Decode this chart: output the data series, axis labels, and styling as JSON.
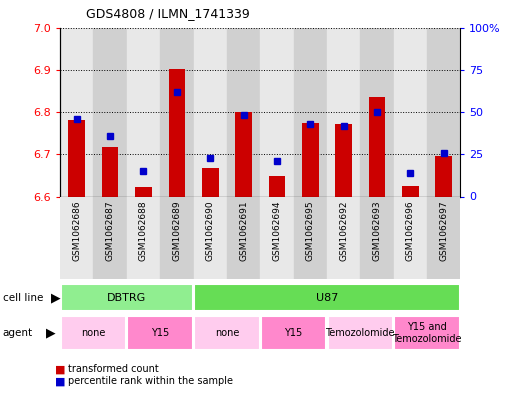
{
  "title": "GDS4808 / ILMN_1741339",
  "samples": [
    "GSM1062686",
    "GSM1062687",
    "GSM1062688",
    "GSM1062689",
    "GSM1062690",
    "GSM1062691",
    "GSM1062694",
    "GSM1062695",
    "GSM1062692",
    "GSM1062693",
    "GSM1062696",
    "GSM1062697"
  ],
  "transformed_count": [
    6.782,
    6.718,
    6.622,
    6.902,
    6.668,
    6.8,
    6.648,
    6.775,
    6.772,
    6.835,
    6.625,
    6.695
  ],
  "percentile_rank": [
    46,
    36,
    15,
    62,
    23,
    48,
    21,
    43,
    42,
    50,
    14,
    26
  ],
  "ylim_left": [
    6.6,
    7.0
  ],
  "ylim_right": [
    0,
    100
  ],
  "yticks_left": [
    6.6,
    6.7,
    6.8,
    6.9,
    7.0
  ],
  "yticks_right": [
    0,
    25,
    50,
    75,
    100
  ],
  "ytick_labels_right": [
    "0",
    "25",
    "50",
    "75",
    "100%"
  ],
  "bar_color": "#cc0000",
  "dot_color": "#0000cc",
  "bar_baseline": 6.6,
  "bar_width": 0.5,
  "col_bg_even": "#e8e8e8",
  "col_bg_odd": "#d0d0d0",
  "cell_line_groups": [
    {
      "label": "DBTRG",
      "start": 0,
      "end": 4,
      "color": "#90ee90"
    },
    {
      "label": "U87",
      "start": 4,
      "end": 12,
      "color": "#66dd55"
    }
  ],
  "agent_groups": [
    {
      "label": "none",
      "start": 0,
      "end": 2,
      "color": "#ffccee"
    },
    {
      "label": "Y15",
      "start": 2,
      "end": 4,
      "color": "#ff88cc"
    },
    {
      "label": "none",
      "start": 4,
      "end": 6,
      "color": "#ffccee"
    },
    {
      "label": "Y15",
      "start": 6,
      "end": 8,
      "color": "#ff88cc"
    },
    {
      "label": "Temozolomide",
      "start": 8,
      "end": 10,
      "color": "#ffccee"
    },
    {
      "label": "Y15 and\nTemozolomide",
      "start": 10,
      "end": 12,
      "color": "#ff88cc"
    }
  ],
  "legend_items": [
    {
      "label": "transformed count",
      "color": "#cc0000"
    },
    {
      "label": "percentile rank within the sample",
      "color": "#0000cc"
    }
  ]
}
